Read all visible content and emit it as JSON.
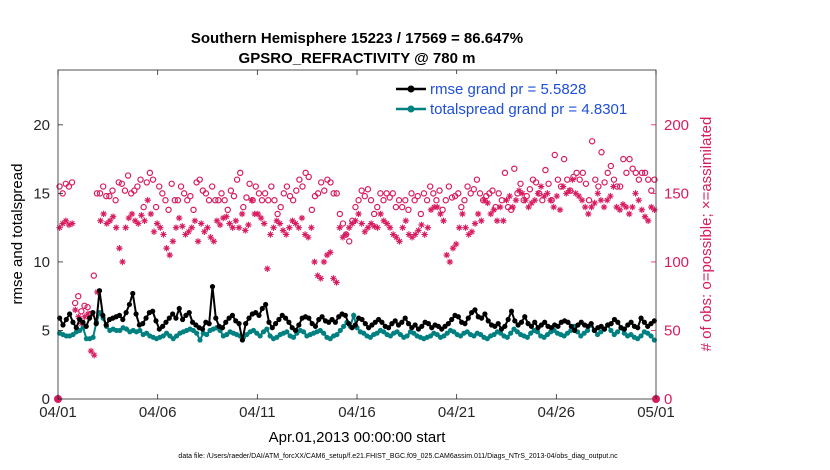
{
  "chart_data": {
    "type": "line",
    "title": "Southern Hemisphere 15223 / 17569 = 86.647%",
    "subtitle": "GPSRO_REFRACTIVITY @ 780 m",
    "xlabel": "Apr.01,2013 00:00:00 start",
    "ylabel": "rmse and totalspread",
    "ylabel_right": "# of obs: o=possible; ×=assimilated",
    "footnote": "data file: /Users/raeder/DAI/ATM_forcXX/CAM6_setup/f.e21.FHIST_BGC.f09_025.CAM6assim.011/Diags_NTrS_2013-04/obs_diag_output.nc",
    "xlim": [
      0,
      30
    ],
    "ylim": [
      0,
      24
    ],
    "ylim_right": [
      0,
      240
    ],
    "x_ticks": [
      0,
      5,
      10,
      15,
      20,
      25,
      30
    ],
    "x_tick_labels": [
      "04/01",
      "04/06",
      "04/11",
      "04/16",
      "04/21",
      "04/26",
      "05/01"
    ],
    "y_ticks": [
      0,
      5,
      10,
      15,
      20
    ],
    "y_tick_labels": [
      "0",
      "5",
      "10",
      "15",
      "20"
    ],
    "y2_ticks": [
      0,
      50,
      100,
      150,
      200
    ],
    "y2_tick_labels": [
      "0",
      "50",
      "100",
      "150",
      "200"
    ],
    "legend_position": "top-right",
    "colors": {
      "rmse": "#000000",
      "spread": "#008080",
      "obs": "#d81b60",
      "legend_text": "#1f4fd8"
    },
    "series": [
      {
        "name": "rmse grand pr = 5.5828",
        "axis": "left",
        "values": [
          5.9,
          5.4,
          5.8,
          6.2,
          5.6,
          5.2,
          5.8,
          5.6,
          5.3,
          5.9,
          6.3,
          5.5,
          7.9,
          6.1,
          5.4,
          5.8,
          5.9,
          6.0,
          6.1,
          5.8,
          6.3,
          6.9,
          7.7,
          6.2,
          5.4,
          5.5,
          5.9,
          6.3,
          6.4,
          5.7,
          5.1,
          5.3,
          5.6,
          5.9,
          6.2,
          5.9,
          6.6,
          5.8,
          6.1,
          6.3,
          5.6,
          5.4,
          5.2,
          5.1,
          5.6,
          5.5,
          8.2,
          5.9,
          5.3,
          5.2,
          5.6,
          5.9,
          6.1,
          5.7,
          5.5,
          4.3,
          5.5,
          5.9,
          6.2,
          6.3,
          6.1,
          6.6,
          6.9,
          5.6,
          5.2,
          5.5,
          5.8,
          6.1,
          5.9,
          5.6,
          5.2,
          5.0,
          5.4,
          5.9,
          6.0,
          5.9,
          5.5,
          5.3,
          5.8,
          6.0,
          5.7,
          5.6,
          5.8,
          5.6,
          6.0,
          6.2,
          6.1,
          5.5,
          5.2,
          5.4,
          5.9,
          5.8,
          5.5,
          5.2,
          5.4,
          5.6,
          5.8,
          5.6,
          5.3,
          5.2,
          5.5,
          5.7,
          5.4,
          5.6,
          5.9,
          5.5,
          5.2,
          5.4,
          5.1,
          5.3,
          5.6,
          5.5,
          5.2,
          5.4,
          5.3,
          5.1,
          5.3,
          5.5,
          5.8,
          6.1,
          6.0,
          5.6,
          5.5,
          5.9,
          6.3,
          6.5,
          6.0,
          5.9,
          6.2,
          5.7,
          5.4,
          5.3,
          5.5,
          5.1,
          5.3,
          5.8,
          6.4,
          5.7,
          5.4,
          5.6,
          6.0,
          5.5,
          5.3,
          5.6,
          5.2,
          5.4,
          5.6,
          5.3,
          5.2,
          5.4,
          5.3,
          5.6,
          5.7,
          5.6,
          5.3,
          5.0,
          5.4,
          5.6,
          5.4,
          5.3,
          5.5,
          5.0,
          5.2,
          5.3,
          5.1,
          5.4,
          5.5,
          5.8,
          5.6,
          5.2,
          5.1,
          5.4,
          5.6,
          5.3,
          5.2,
          5.9,
          5.6,
          5.3,
          5.5,
          5.7
        ]
      },
      {
        "name": "totalspread grand pr = 4.8301",
        "axis": "left",
        "values": [
          4.8,
          4.7,
          4.6,
          4.6,
          4.7,
          4.9,
          5.0,
          5.2,
          4.4,
          4.4,
          4.5,
          5.6,
          6.3,
          5.9,
          5.3,
          5.0,
          5.1,
          5.0,
          5.0,
          5.2,
          5.1,
          4.9,
          5.0,
          4.9,
          5.0,
          4.7,
          4.8,
          4.6,
          4.5,
          4.4,
          4.5,
          4.6,
          4.8,
          4.6,
          4.4,
          4.6,
          4.8,
          4.9,
          5.0,
          5.1,
          5.0,
          4.8,
          4.3,
          4.8,
          4.7,
          5.0,
          5.1,
          5.2,
          5.0,
          4.6,
          4.7,
          4.9,
          4.8,
          4.7,
          4.6,
          4.5,
          4.7,
          4.9,
          5.0,
          4.8,
          4.6,
          4.9,
          5.1,
          4.6,
          4.4,
          4.5,
          4.7,
          4.8,
          4.9,
          4.6,
          4.5,
          4.8,
          5.0,
          4.9,
          4.6,
          4.7,
          4.8,
          4.9,
          5.0,
          4.8,
          4.5,
          4.4,
          4.6,
          4.7,
          5.0,
          5.3,
          5.6,
          5.3,
          6.1,
          5.2,
          4.9,
          4.8,
          4.6,
          4.5,
          4.7,
          4.8,
          5.0,
          4.9,
          4.7,
          4.6,
          4.8,
          4.9,
          4.7,
          4.5,
          4.6,
          4.9,
          4.8,
          4.6,
          4.5,
          4.4,
          4.5,
          4.6,
          4.8,
          4.7,
          4.5,
          4.6,
          4.8,
          5.0,
          4.9,
          4.7,
          4.6,
          4.8,
          4.9,
          4.7,
          4.6,
          4.8,
          4.7,
          4.5,
          4.4,
          4.6,
          4.7,
          4.9,
          4.8,
          4.6,
          4.5,
          4.8,
          5.1,
          4.9,
          4.7,
          4.6,
          4.5,
          4.8,
          5.0,
          4.9,
          4.6,
          4.5,
          4.7,
          4.9,
          5.0,
          4.8,
          4.7,
          4.6,
          4.8,
          5.0,
          5.3,
          4.9,
          4.6,
          4.8,
          5.0,
          5.4,
          5.0,
          4.7,
          4.9,
          5.1,
          5.4,
          5.0,
          4.7,
          4.9,
          5.2,
          4.8,
          4.6,
          4.7,
          4.5,
          4.4,
          4.6,
          4.9,
          4.8,
          4.6,
          4.3
        ]
      }
    ],
    "obs_possible": {
      "name": "# obs possible (o)",
      "axis": "right",
      "values": [
        155,
        150,
        157,
        155,
        158,
        70,
        75,
        64,
        68,
        67,
        62,
        90,
        150,
        150,
        155,
        148,
        148,
        152,
        145,
        158,
        157,
        152,
        163,
        150,
        152,
        155,
        160,
        140,
        158,
        165,
        160,
        140,
        155,
        150,
        145,
        138,
        157,
        145,
        145,
        155,
        150,
        145,
        148,
        138,
        158,
        160,
        152,
        150,
        145,
        155,
        145,
        145,
        150,
        145,
        138,
        152,
        148,
        160,
        165,
        140,
        147,
        157,
        145,
        155,
        150,
        145,
        150,
        145,
        155,
        145,
        135,
        140,
        150,
        155,
        148,
        145,
        152,
        160,
        155,
        165,
        162,
        138,
        148,
        150,
        158,
        152,
        160,
        158,
        150,
        150,
        135,
        128,
        120,
        115,
        130,
        140,
        145,
        152,
        148,
        153,
        145,
        135,
        140,
        150,
        145,
        150,
        147,
        150,
        140,
        145,
        140,
        145,
        138,
        150,
        145,
        148,
        135,
        150,
        145,
        155,
        150,
        145,
        152,
        138,
        145,
        155,
        147,
        148,
        150,
        140,
        145,
        155,
        150,
        153,
        160,
        150,
        145,
        148,
        150,
        152,
        140,
        150,
        145,
        165,
        140,
        138,
        168,
        150,
        157,
        145,
        148,
        153,
        160,
        158,
        150,
        145,
        167,
        157,
        145,
        178,
        160,
        155,
        175,
        160,
        152,
        162,
        165,
        160,
        165,
        157,
        145,
        188,
        160,
        155,
        180,
        158,
        165,
        170,
        160,
        155,
        155,
        175,
        165,
        175,
        168,
        165,
        160,
        165,
        165,
        160,
        152,
        160
      ]
    },
    "obs_assimilated": {
      "name": "# obs assimilated (x)",
      "axis": "right",
      "values": [
        125,
        128,
        130,
        127,
        128,
        65,
        60,
        55,
        60,
        62,
        35,
        32,
        78,
        130,
        135,
        128,
        130,
        133,
        125,
        110,
        100,
        125,
        132,
        135,
        130,
        128,
        134,
        130,
        145,
        135,
        122,
        128,
        125,
        120,
        110,
        105,
        115,
        125,
        132,
        126,
        120,
        122,
        125,
        130,
        115,
        128,
        122,
        125,
        118,
        115,
        130,
        127,
        132,
        133,
        128,
        125,
        130,
        125,
        135,
        123,
        127,
        145,
        135,
        135,
        132,
        128,
        95,
        120,
        125,
        130,
        128,
        123,
        120,
        125,
        130,
        128,
        125,
        132,
        120,
        118,
        125,
        100,
        90,
        88,
        100,
        105,
        107,
        88,
        85,
        125,
        118,
        120,
        125,
        128,
        130,
        135,
        128,
        122,
        125,
        128,
        126,
        125,
        135,
        130,
        128,
        125,
        120,
        118,
        115,
        125,
        130,
        120,
        118,
        120,
        123,
        127,
        120,
        125,
        138,
        140,
        140,
        135,
        130,
        105,
        100,
        110,
        113,
        125,
        135,
        125,
        120,
        122,
        128,
        135,
        130,
        145,
        143,
        135,
        138,
        130,
        140,
        130,
        145,
        148,
        140,
        145,
        152,
        150,
        145,
        140,
        143,
        145,
        150,
        155,
        148,
        150,
        145,
        140,
        148,
        138,
        155,
        150,
        152,
        160,
        150,
        148,
        145,
        140,
        135,
        140,
        143,
        150,
        145,
        140,
        145,
        148,
        155,
        140,
        138,
        142,
        140,
        135,
        140,
        150,
        145,
        138,
        133,
        130,
        140,
        138
      ]
    }
  }
}
